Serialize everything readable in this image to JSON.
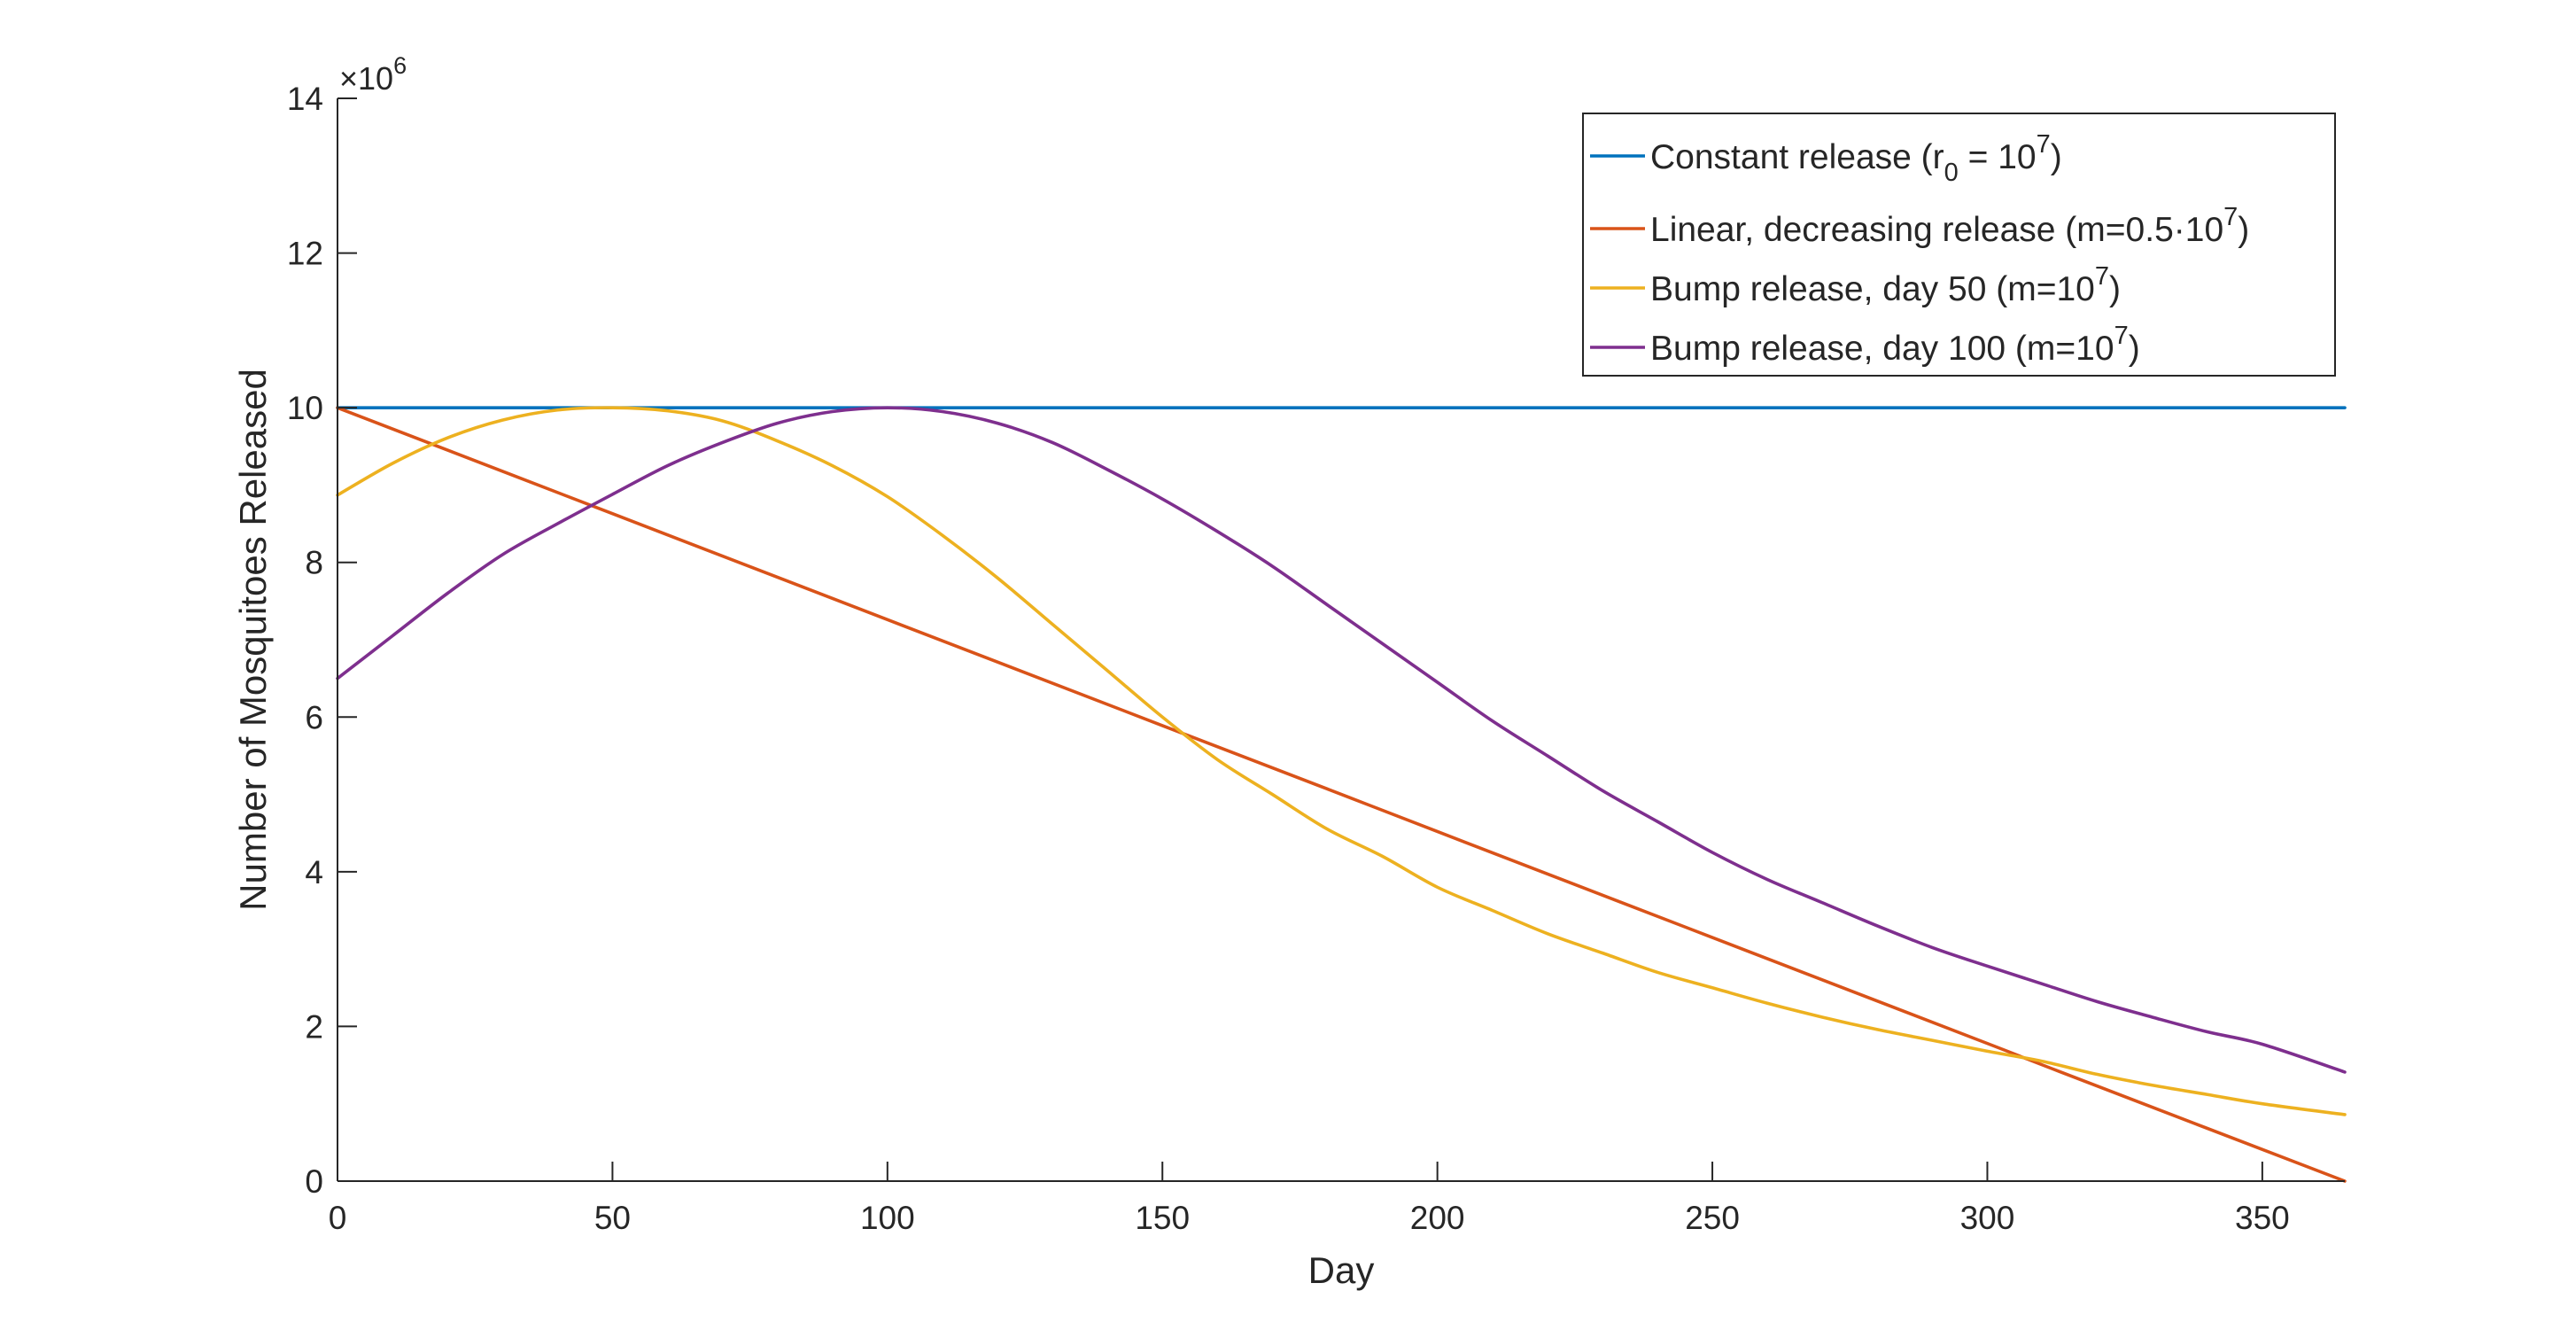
{
  "chart_data": {
    "type": "line",
    "title": "",
    "xlabel": "Day",
    "ylabel": "Number of Mosquitoes Released",
    "y_exponent_label": {
      "base": "×10",
      "exp": "6"
    },
    "xlim": [
      0,
      365
    ],
    "ylim": [
      0,
      14
    ],
    "x_ticks": [
      "0",
      "50",
      "100",
      "150",
      "200",
      "250",
      "300",
      "350"
    ],
    "y_ticks": [
      "0",
      "2",
      "4",
      "6",
      "8",
      "10",
      "12",
      "14"
    ],
    "grid": false,
    "legend_position": "top-right",
    "series": [
      {
        "name": "Constant release",
        "legend": {
          "pre": "Constant release (r",
          "sub": "0",
          "mid": " = 10",
          "sup": "7",
          "post": ")"
        },
        "color": "#0072BD",
        "x": [
          0,
          365
        ],
        "y": [
          10,
          10
        ]
      },
      {
        "name": "Linear, decreasing release",
        "legend": {
          "pre": "Linear, decreasing release (m=0.5·10",
          "sup": "7",
          "post": ")"
        },
        "color": "#D95319",
        "x": [
          0,
          50,
          100,
          150,
          180,
          200,
          250,
          300,
          313,
          365
        ],
        "y": [
          10,
          8.63,
          7.26,
          5.89,
          5.07,
          4.52,
          3.15,
          1.78,
          1.42,
          0
        ]
      },
      {
        "name": "Bump release, day 50",
        "legend": {
          "pre": "Bump release, day 50 (m=10",
          "sup": "7",
          "post": ")"
        },
        "color": "#EDB120",
        "x": [
          0,
          10,
          20,
          30,
          40,
          50,
          60,
          70,
          80,
          90,
          100,
          110,
          120,
          130,
          140,
          150,
          160,
          170,
          180,
          190,
          200,
          210,
          220,
          230,
          240,
          250,
          260,
          270,
          280,
          290,
          300,
          310,
          320,
          330,
          340,
          350,
          365
        ],
        "y": [
          8.87,
          9.28,
          9.61,
          9.84,
          9.97,
          10,
          9.96,
          9.83,
          9.57,
          9.25,
          8.85,
          8.35,
          7.8,
          7.2,
          6.6,
          6.0,
          5.45,
          5.0,
          4.55,
          4.2,
          3.8,
          3.5,
          3.2,
          2.95,
          2.7,
          2.5,
          2.3,
          2.12,
          1.96,
          1.82,
          1.68,
          1.55,
          1.38,
          1.24,
          1.12,
          1.0,
          0.86
        ]
      },
      {
        "name": "Bump release, day 100",
        "legend": {
          "pre": "Bump release, day 100 (m=10",
          "sup": "7",
          "post": ")"
        },
        "color": "#7E2F8E",
        "x": [
          0,
          10,
          20,
          30,
          40,
          50,
          60,
          70,
          80,
          90,
          100,
          110,
          120,
          130,
          140,
          150,
          160,
          170,
          180,
          190,
          200,
          210,
          220,
          230,
          240,
          250,
          260,
          270,
          280,
          290,
          300,
          310,
          320,
          330,
          340,
          350,
          365
        ],
        "y": [
          6.5,
          7.05,
          7.6,
          8.1,
          8.5,
          8.88,
          9.25,
          9.55,
          9.8,
          9.95,
          10,
          9.95,
          9.8,
          9.55,
          9.2,
          8.82,
          8.4,
          7.95,
          7.45,
          6.95,
          6.45,
          5.95,
          5.5,
          5.05,
          4.65,
          4.25,
          3.9,
          3.6,
          3.3,
          3.02,
          2.78,
          2.55,
          2.32,
          2.12,
          1.93,
          1.77,
          1.41
        ]
      }
    ]
  }
}
